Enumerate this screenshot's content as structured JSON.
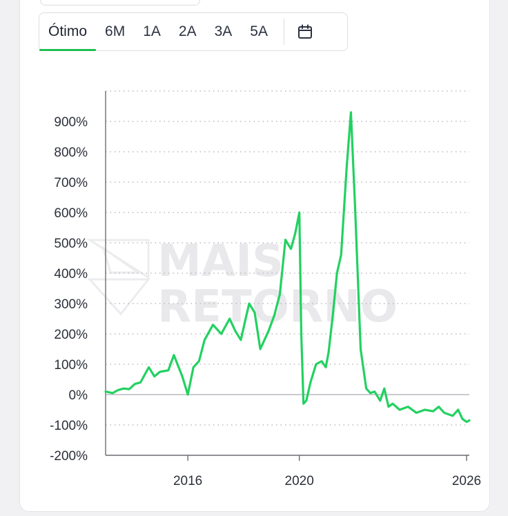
{
  "tabs": [
    {
      "label": "Ótimo",
      "active": true
    },
    {
      "label": "6M"
    },
    {
      "label": "1A"
    },
    {
      "label": "2A"
    },
    {
      "label": "3A"
    },
    {
      "label": "5A"
    }
  ],
  "calendar_icon": "calendar-icon",
  "watermark": [
    "MAIS",
    "RETORNO"
  ],
  "colors": {
    "line": "#22d160",
    "accent": "#1fbf52"
  },
  "chart_data": {
    "type": "line",
    "y_unit": "%",
    "ylim": [
      -200,
      1000
    ],
    "yticks": [
      -200,
      -100,
      0,
      100,
      200,
      300,
      400,
      500,
      600,
      700,
      800,
      900
    ],
    "ytick_labels": [
      "-200%",
      "-100%",
      "0%",
      "100%",
      "200%",
      "300%",
      "400%",
      "500%",
      "600%",
      "700%",
      "800%",
      "900%"
    ],
    "xlim": [
      2013.05,
      2026.1
    ],
    "xticks": [
      2016,
      2020,
      2026
    ],
    "xtick_labels": [
      "2016",
      "2020",
      "2026"
    ],
    "grid": "horizontal dotted",
    "series": [
      {
        "x": [
          2013.05,
          2013.3,
          2013.5,
          2013.7,
          2013.9,
          2014.1,
          2014.3,
          2014.6,
          2014.8,
          2015.0,
          2015.3,
          2015.5,
          2015.8,
          2016.0,
          2016.2,
          2016.4,
          2016.6,
          2016.9,
          2017.2,
          2017.5,
          2017.7,
          2017.9,
          2018.1,
          2018.2,
          2018.4,
          2018.6,
          2018.9,
          2019.1,
          2019.3,
          2019.5,
          2019.7,
          2019.85,
          2020.0,
          2020.07,
          2020.15,
          2020.25,
          2020.4,
          2020.6,
          2020.8,
          2020.95,
          2021.05,
          2021.2,
          2021.35,
          2021.5,
          2021.7,
          2021.85,
          2022.0,
          2022.2,
          2022.4,
          2022.55,
          2022.7,
          2022.9,
          2023.05,
          2023.2,
          2023.35,
          2023.6,
          2023.9,
          2024.2,
          2024.5,
          2024.8,
          2025.0,
          2025.2,
          2025.5,
          2025.7,
          2025.85,
          2026.0,
          2026.1
        ],
        "y": [
          10,
          5,
          15,
          20,
          18,
          35,
          40,
          90,
          60,
          75,
          80,
          130,
          60,
          0,
          90,
          110,
          180,
          230,
          200,
          250,
          210,
          180,
          260,
          300,
          270,
          150,
          210,
          260,
          330,
          510,
          480,
          530,
          600,
          200,
          -30,
          -20,
          40,
          100,
          110,
          90,
          140,
          260,
          400,
          460,
          750,
          930,
          620,
          150,
          20,
          5,
          10,
          -20,
          20,
          -40,
          -30,
          -50,
          -40,
          -60,
          -50,
          -55,
          -40,
          -60,
          -70,
          -50,
          -80,
          -90,
          -85
        ]
      }
    ]
  }
}
